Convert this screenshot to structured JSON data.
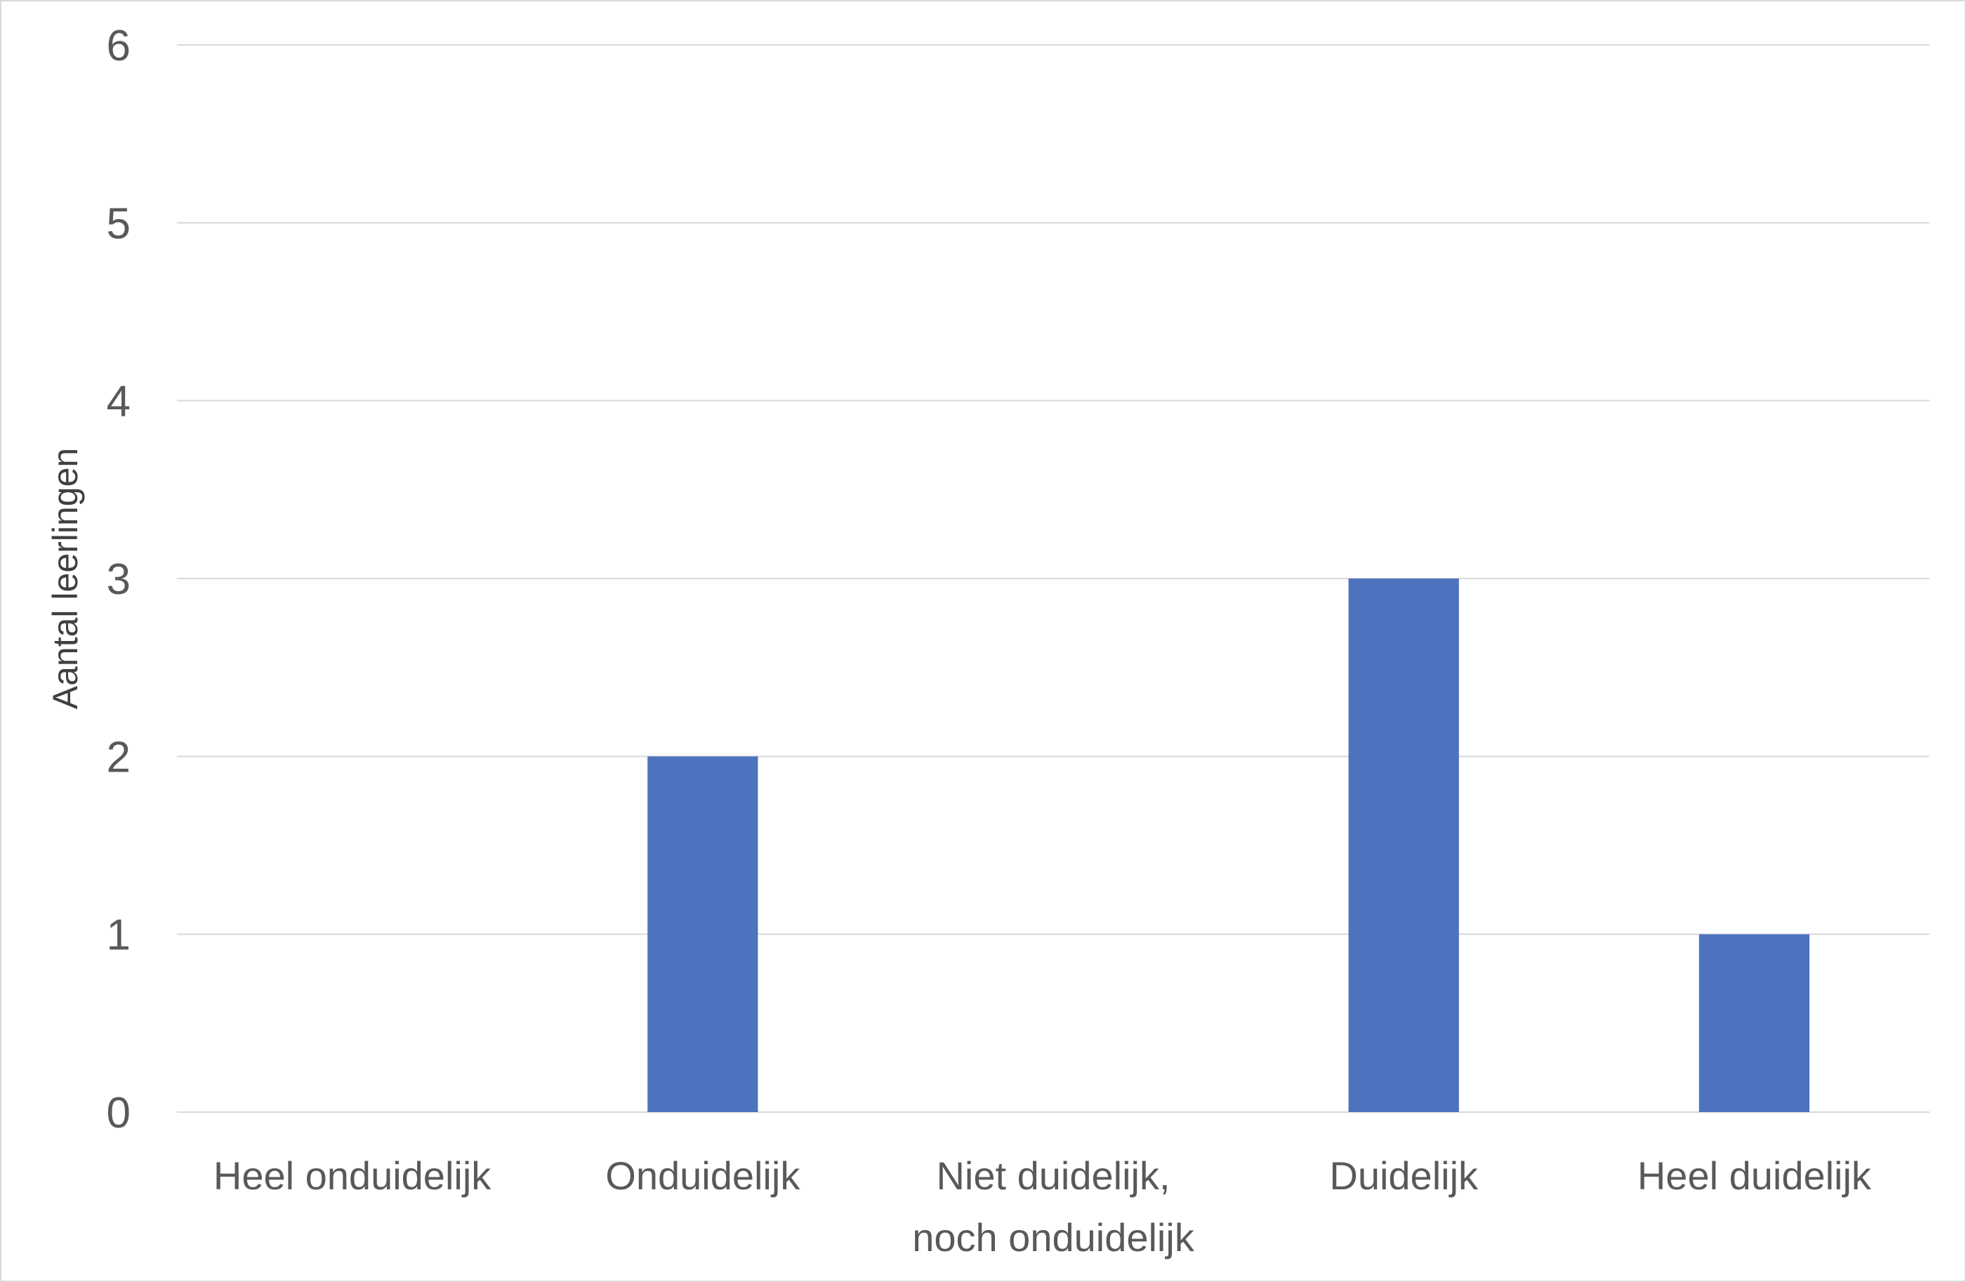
{
  "chart_data": {
    "type": "bar",
    "title": "",
    "xlabel": "",
    "ylabel": "Aantal leerlingen",
    "categories": [
      [
        "Heel onduidelijk"
      ],
      [
        "Onduidelijk"
      ],
      [
        "Niet duidelijk,",
        "noch onduidelijk"
      ],
      [
        "Duidelijk"
      ],
      [
        "Heel duidelijk"
      ]
    ],
    "values": [
      0,
      2,
      0,
      3,
      1
    ],
    "ylim": [
      0,
      6
    ],
    "yticks": [
      0,
      1,
      2,
      3,
      4,
      5,
      6
    ],
    "grid": true,
    "legend": "none",
    "colors": {
      "bar": "#4e73be",
      "grid": "#d9d9d9",
      "text": "#595959",
      "border": "#d9d9d9"
    }
  }
}
